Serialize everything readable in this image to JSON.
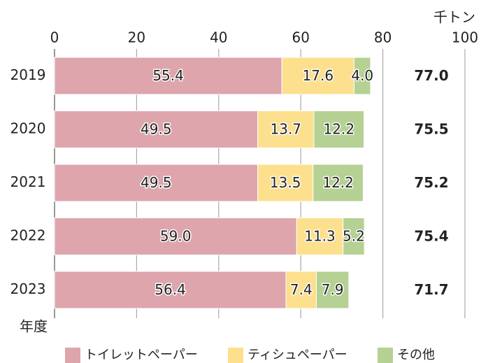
{
  "chart_data": {
    "type": "stacked-barh",
    "unit_label": "千トン",
    "category_axis_label": "年度",
    "categories": [
      "2019",
      "2020",
      "2021",
      "2022",
      "2023"
    ],
    "series": [
      {
        "name": "トイレットペーパー",
        "color": "#dea5ad",
        "values": [
          55.4,
          49.5,
          49.5,
          59.0,
          56.4
        ],
        "value_labels": [
          "55.4",
          "49.5",
          "49.5",
          "59.0",
          "56.4"
        ]
      },
      {
        "name": "ティシュペーパー",
        "color": "#fde08e",
        "values": [
          17.6,
          13.7,
          13.5,
          11.3,
          7.4
        ],
        "value_labels": [
          "17.6",
          "13.7",
          "13.5",
          "11.3",
          "7.4"
        ]
      },
      {
        "name": "その他",
        "color": "#b5d193",
        "values": [
          4.0,
          12.2,
          12.2,
          5.2,
          7.9
        ],
        "value_labels": [
          "4.0",
          "12.2",
          "12.2",
          "5.2",
          "7.9"
        ]
      }
    ],
    "totals": {
      "values": [
        77.0,
        75.5,
        75.2,
        75.4,
        71.7
      ],
      "value_labels": [
        "77.0",
        "75.5",
        "75.2",
        "75.4",
        "71.7"
      ]
    },
    "xlim": [
      0,
      100
    ],
    "xticks": [
      0,
      20,
      40,
      60,
      80,
      100
    ],
    "grid": true,
    "legend": "bottom"
  }
}
